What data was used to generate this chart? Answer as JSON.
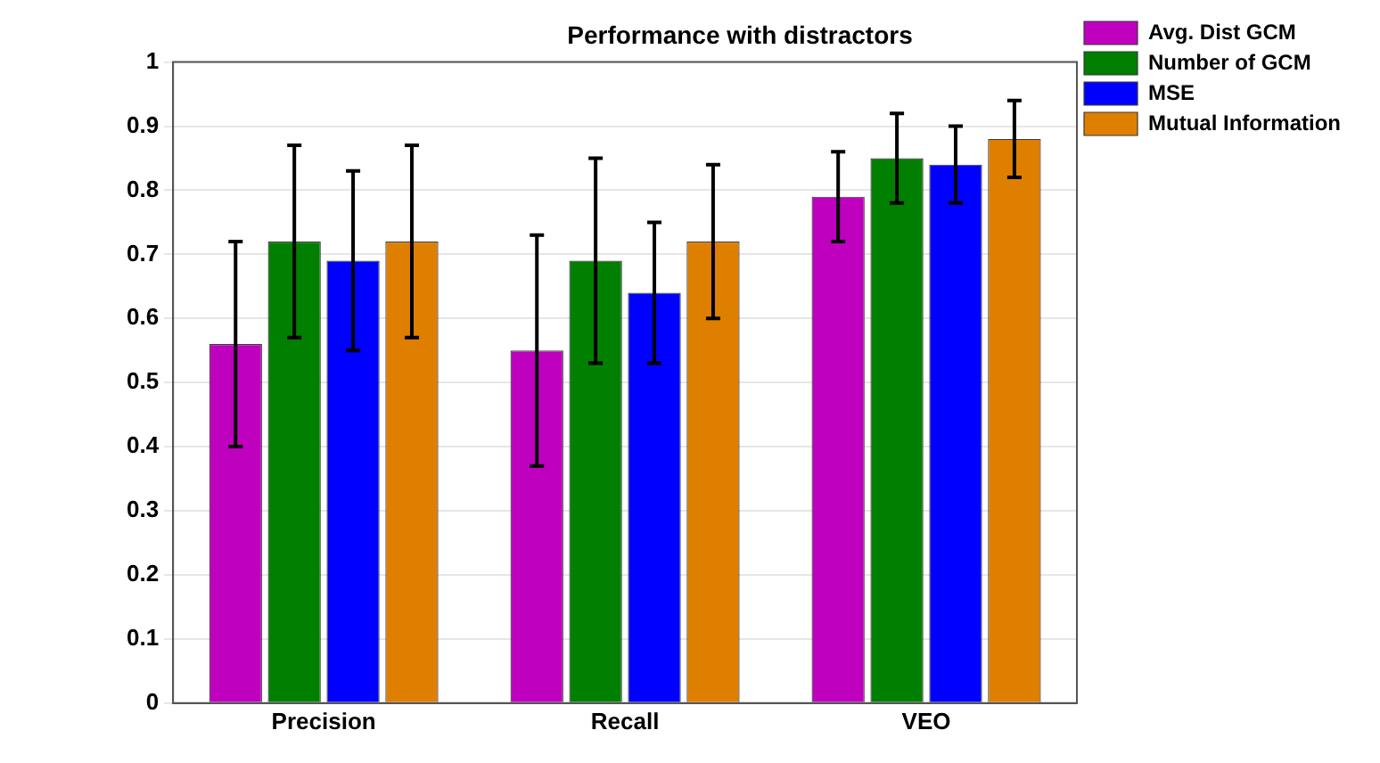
{
  "chart_data": {
    "type": "bar",
    "title": "Performance with distractors",
    "categories": [
      "Precision",
      "Recall",
      "VEO"
    ],
    "series": [
      {
        "name": "Avg. Dist GCM",
        "color": "#bf00bf",
        "values": [
          0.56,
          0.55,
          0.79
        ],
        "errors": [
          [
            0.4,
            0.72
          ],
          [
            0.37,
            0.73
          ],
          [
            0.72,
            0.86
          ]
        ]
      },
      {
        "name": "Number of GCM",
        "color": "#007f00",
        "values": [
          0.72,
          0.69,
          0.85
        ],
        "errors": [
          [
            0.57,
            0.87
          ],
          [
            0.53,
            0.85
          ],
          [
            0.78,
            0.92
          ]
        ]
      },
      {
        "name": "MSE",
        "color": "#0000ff",
        "values": [
          0.69,
          0.64,
          0.84
        ],
        "errors": [
          [
            0.55,
            0.83
          ],
          [
            0.53,
            0.75
          ],
          [
            0.78,
            0.9
          ]
        ]
      },
      {
        "name": "Mutual Information",
        "color": "#df7f00",
        "values": [
          0.72,
          0.72,
          0.88
        ],
        "errors": [
          [
            0.57,
            0.87
          ],
          [
            0.6,
            0.84
          ],
          [
            0.82,
            0.94
          ]
        ]
      }
    ],
    "ylim": [
      0,
      1
    ],
    "yticks": [
      0,
      0.1,
      0.2,
      0.3,
      0.4,
      0.5,
      0.6,
      0.7,
      0.8,
      0.9,
      1
    ],
    "grid": "y",
    "legend": "top right"
  }
}
